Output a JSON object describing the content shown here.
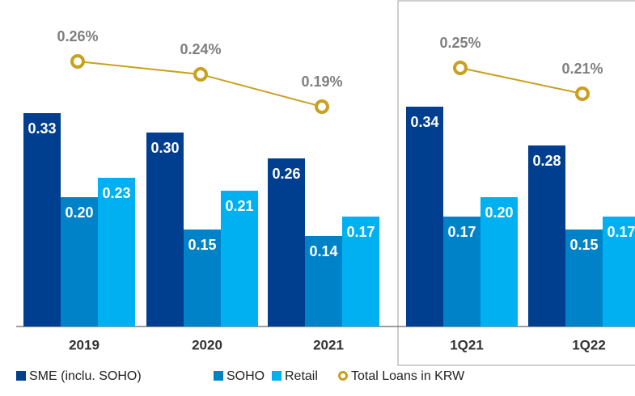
{
  "chart_data": {
    "type": "bar",
    "categories": [
      "2019",
      "2020",
      "2021",
      "1Q21",
      "1Q22"
    ],
    "series": [
      {
        "name": "SME (inclu. SOHO)",
        "color": "#003f8f",
        "values": [
          0.33,
          0.3,
          0.26,
          0.34,
          0.28
        ],
        "value_labels": [
          "0.33",
          "0.30",
          "0.26",
          "0.34",
          "0.28"
        ]
      },
      {
        "name": "SOHO",
        "color": "#0082c9",
        "values": [
          0.2,
          0.15,
          0.14,
          0.17,
          0.15
        ],
        "value_labels": [
          "0.20",
          "0.15",
          "0.14",
          "0.17",
          "0.15"
        ]
      },
      {
        "name": "Retail",
        "color": "#00b0f0",
        "values": [
          0.23,
          0.21,
          0.17,
          0.2,
          0.17
        ],
        "value_labels": [
          "0.23",
          "0.21",
          "0.17",
          "0.20",
          "0.17"
        ]
      },
      {
        "name": "Total Loans in KRW",
        "type": "line",
        "axis": "y2",
        "color": "#c9a020",
        "values": [
          0.26,
          0.24,
          0.19,
          0.25,
          0.21
        ],
        "value_labels": [
          "0.26%",
          "0.24%",
          "0.19%",
          "0.25%",
          "0.21%"
        ]
      }
    ],
    "ylim": [
      0,
      0.455
    ],
    "y2lim": [
      -0.15,
      0.305
    ],
    "legend": "bottom"
  }
}
